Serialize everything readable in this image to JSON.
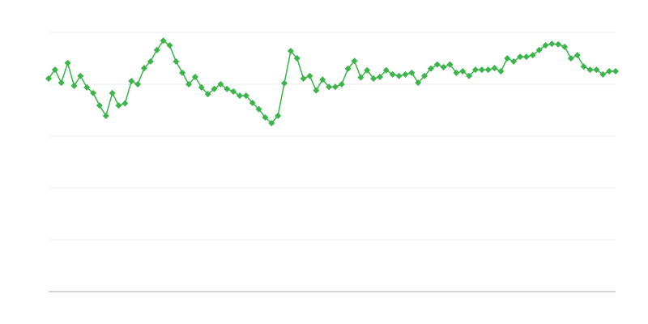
{
  "chart_data": {
    "type": "line",
    "title": "",
    "xlabel": "",
    "ylabel": "",
    "ylim": [
      0,
      5
    ],
    "grid": true,
    "legend": "none",
    "marker": "diamond",
    "color": "#3bb44a",
    "grid_color": "#ebebeb",
    "axis_color": "#aaaaaa",
    "series": [
      {
        "values": [
          4.11,
          4.28,
          4.03,
          4.41,
          3.97,
          4.16,
          3.94,
          3.83,
          3.59,
          3.39,
          3.83,
          3.59,
          3.63,
          4.06,
          4.0,
          4.31,
          4.44,
          4.66,
          4.84,
          4.75,
          4.44,
          4.22,
          4.0,
          4.14,
          3.94,
          3.81,
          3.91,
          4.0,
          3.91,
          3.86,
          3.78,
          3.78,
          3.64,
          3.52,
          3.36,
          3.25,
          3.39,
          4.02,
          4.64,
          4.5,
          4.11,
          4.16,
          3.88,
          4.09,
          3.95,
          3.95,
          4.0,
          4.3,
          4.45,
          4.13,
          4.27,
          4.11,
          4.14,
          4.27,
          4.19,
          4.16,
          4.19,
          4.22,
          4.03,
          4.16,
          4.3,
          4.38,
          4.33,
          4.38,
          4.22,
          4.25,
          4.16,
          4.28,
          4.28,
          4.28,
          4.31,
          4.25,
          4.5,
          4.44,
          4.53,
          4.53,
          4.56,
          4.66,
          4.75,
          4.78,
          4.77,
          4.72,
          4.5,
          4.56,
          4.34,
          4.28,
          4.28,
          4.19,
          4.25,
          4.25
        ]
      }
    ]
  }
}
